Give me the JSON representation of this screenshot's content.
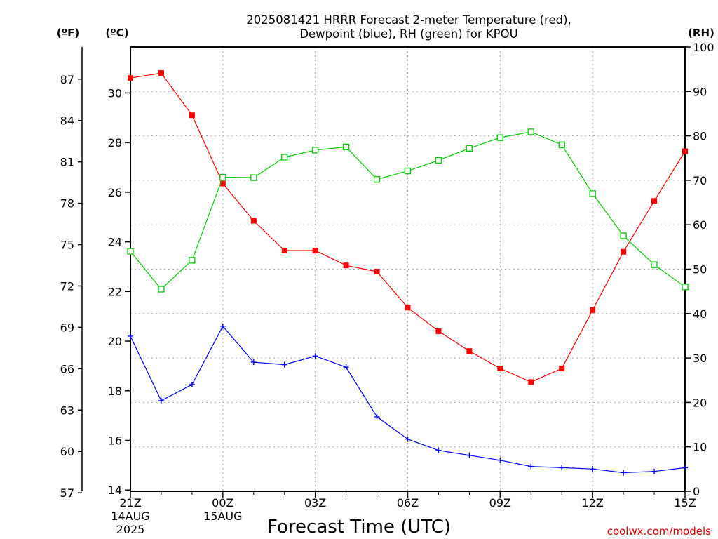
{
  "chart_data": {
    "type": "line",
    "title": "2025081421 HRRR Forecast 2-meter Temperature (red),",
    "subtitle": "Dewpoint (blue), RH (green) for KPOU",
    "xlabel": "Forecast Time (UTC)",
    "left_units_f": "(ºF)",
    "left_units_c": "(ºC)",
    "right_units": "(RH)",
    "credit": "coolwx.com/models",
    "x_hours": [
      0,
      1,
      2,
      3,
      4,
      5,
      6,
      7,
      8,
      9,
      10,
      11,
      12,
      13,
      14,
      15,
      16,
      17,
      18
    ],
    "x_ticks": [
      {
        "hour": 0,
        "label": "21Z",
        "sub1": "14AUG",
        "sub2": "2025"
      },
      {
        "hour": 3,
        "label": "00Z",
        "sub1": "15AUG",
        "sub2": ""
      },
      {
        "hour": 6,
        "label": "03Z",
        "sub1": "",
        "sub2": ""
      },
      {
        "hour": 9,
        "label": "06Z",
        "sub1": "",
        "sub2": ""
      },
      {
        "hour": 12,
        "label": "09Z",
        "sub1": "",
        "sub2": ""
      },
      {
        "hour": 15,
        "label": "12Z",
        "sub1": "",
        "sub2": ""
      },
      {
        "hour": 18,
        "label": "15Z",
        "sub1": "",
        "sub2": ""
      }
    ],
    "celsius_ticks": [
      14,
      16,
      18,
      20,
      22,
      24,
      26,
      28,
      30
    ],
    "fahrenheit_ticks": [
      57,
      60,
      63,
      66,
      69,
      72,
      75,
      78,
      81,
      84,
      87
    ],
    "rh_ticks": [
      0,
      10,
      20,
      30,
      40,
      50,
      60,
      70,
      80,
      90,
      100
    ],
    "ylim_c": [
      13.95,
      31.85
    ],
    "ylim_rh": [
      0,
      100
    ],
    "grid": true,
    "series": [
      {
        "name": "Temperature",
        "units": "C",
        "color": "#ff0000",
        "marker": "filled-square",
        "values": [
          30.6,
          30.8,
          29.1,
          26.35,
          24.85,
          23.65,
          23.65,
          23.05,
          22.8,
          21.35,
          20.4,
          19.6,
          18.9,
          18.35,
          18.9,
          21.25,
          23.6,
          25.65,
          27.65
        ]
      },
      {
        "name": "Dewpoint",
        "units": "C",
        "color": "#0000ff",
        "marker": "plus",
        "values": [
          20.2,
          17.6,
          18.25,
          20.6,
          19.15,
          19.05,
          19.4,
          18.95,
          16.95,
          16.05,
          15.6,
          15.4,
          15.2,
          14.95,
          14.9,
          14.85,
          14.7,
          14.75,
          14.9
        ]
      },
      {
        "name": "RH",
        "units": "%",
        "color": "#00cc00",
        "marker": "open-square",
        "values": [
          54,
          45.5,
          52,
          70.7,
          70.6,
          75.2,
          76.8,
          77.5,
          70.2,
          72.1,
          74.5,
          77.2,
          79.6,
          80.9,
          78,
          67,
          57.5,
          51,
          46
        ]
      }
    ]
  }
}
